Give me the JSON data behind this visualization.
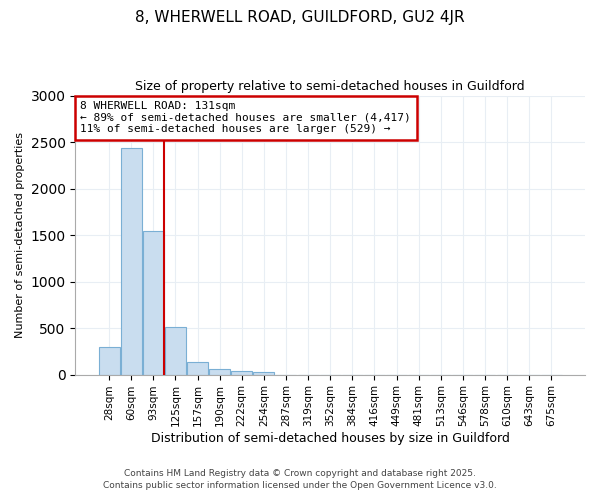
{
  "title1": "8, WHERWELL ROAD, GUILDFORD, GU2 4JR",
  "title2": "Size of property relative to semi-detached houses in Guildford",
  "xlabel": "Distribution of semi-detached houses by size in Guildford",
  "ylabel": "Number of semi-detached properties",
  "categories": [
    "28sqm",
    "60sqm",
    "93sqm",
    "125sqm",
    "157sqm",
    "190sqm",
    "222sqm",
    "254sqm",
    "287sqm",
    "319sqm",
    "352sqm",
    "384sqm",
    "416sqm",
    "449sqm",
    "481sqm",
    "513sqm",
    "546sqm",
    "578sqm",
    "610sqm",
    "643sqm",
    "675sqm"
  ],
  "values": [
    300,
    2440,
    1540,
    510,
    135,
    65,
    35,
    25,
    0,
    0,
    0,
    0,
    0,
    0,
    0,
    0,
    0,
    0,
    0,
    0,
    0
  ],
  "bar_color": "#c9ddef",
  "bar_edge_color": "#7aafd4",
  "red_line_x": 2.5,
  "annotation_title": "8 WHERWELL ROAD: 131sqm",
  "annotation_line1": "← 89% of semi-detached houses are smaller (4,417)",
  "annotation_line2": "11% of semi-detached houses are larger (529) →",
  "annotation_box_color": "#cc0000",
  "ylim": [
    0,
    3000
  ],
  "footnote1": "Contains HM Land Registry data © Crown copyright and database right 2025.",
  "footnote2": "Contains public sector information licensed under the Open Government Licence v3.0.",
  "bg_color": "#ffffff",
  "grid_color": "#e8eef4"
}
